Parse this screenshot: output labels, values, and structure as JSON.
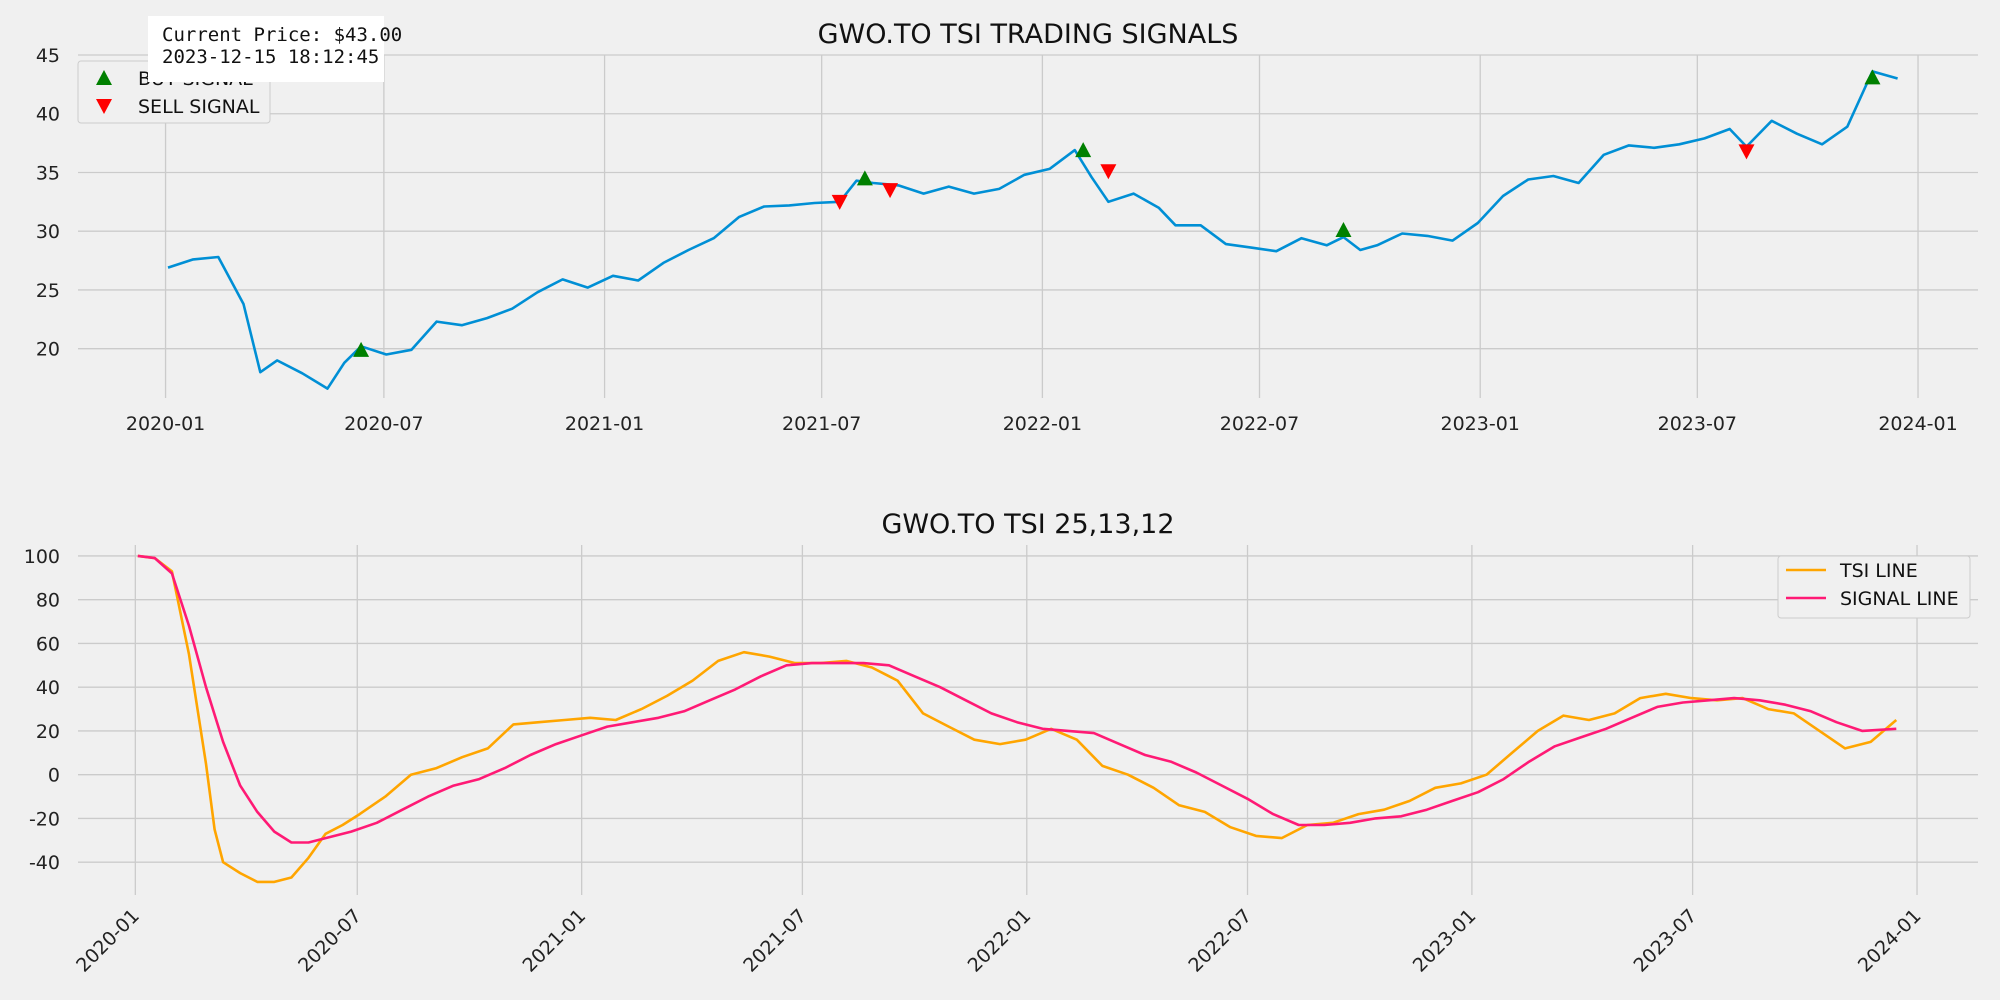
{
  "colors": {
    "background": "#f0f0f0",
    "grid": "#cbcbcb",
    "price_line": "#008fd5",
    "buy": "#008000",
    "sell": "#ff0000",
    "tsi_line": "#ffa500",
    "signal_line": "#ff1a75"
  },
  "info": {
    "price": "Current Price: $43.00",
    "timestamp": "2023-12-15 18:12:45"
  },
  "chart_data": [
    {
      "type": "line",
      "title": "GWO.TO TSI TRADING SIGNALS",
      "xlabel": "",
      "ylabel": "",
      "x_ticks": [
        "2020-01",
        "2020-07",
        "2021-01",
        "2021-07",
        "2022-01",
        "2022-07",
        "2023-01",
        "2023-07",
        "2024-01"
      ],
      "y_ticks": [
        20,
        25,
        30,
        35,
        40,
        45
      ],
      "xlim": [
        "2019-10-20",
        "2024-02-20"
      ],
      "ylim": [
        15.8,
        45.0
      ],
      "grid": true,
      "legend": "top-left",
      "series": [
        {
          "name": "",
          "x": [
            "2020-01-03",
            "2020-01-24",
            "2020-02-14",
            "2020-03-06",
            "2020-03-20",
            "2020-04-03",
            "2020-04-24",
            "2020-05-15",
            "2020-05-29",
            "2020-06-12",
            "2020-07-03",
            "2020-07-24",
            "2020-08-14",
            "2020-09-04",
            "2020-09-25",
            "2020-10-16",
            "2020-11-06",
            "2020-11-27",
            "2020-12-18",
            "2021-01-08",
            "2021-01-29",
            "2021-02-19",
            "2021-03-12",
            "2021-04-02",
            "2021-04-23",
            "2021-05-14",
            "2021-06-04",
            "2021-06-25",
            "2021-07-16",
            "2021-07-30",
            "2021-08-13",
            "2021-09-03",
            "2021-09-24",
            "2021-10-15",
            "2021-11-05",
            "2021-11-26",
            "2021-12-17",
            "2022-01-07",
            "2022-01-28",
            "2022-02-11",
            "2022-02-25",
            "2022-03-18",
            "2022-04-08",
            "2022-04-22",
            "2022-05-13",
            "2022-06-03",
            "2022-06-24",
            "2022-07-15",
            "2022-08-05",
            "2022-08-26",
            "2022-09-09",
            "2022-09-23",
            "2022-10-07",
            "2022-10-28",
            "2022-11-18",
            "2022-12-09",
            "2022-12-30",
            "2023-01-20",
            "2023-02-10",
            "2023-03-03",
            "2023-03-24",
            "2023-04-14",
            "2023-05-05",
            "2023-05-26",
            "2023-06-16",
            "2023-07-07",
            "2023-07-28",
            "2023-08-11",
            "2023-09-01",
            "2023-09-22",
            "2023-10-13",
            "2023-11-03",
            "2023-11-24",
            "2023-12-15"
          ],
          "values": [
            26.9,
            27.6,
            27.8,
            23.8,
            18.0,
            19.0,
            17.9,
            16.6,
            18.8,
            20.2,
            19.5,
            19.9,
            22.3,
            22.0,
            22.6,
            23.4,
            24.8,
            25.9,
            25.2,
            26.2,
            25.8,
            27.3,
            28.4,
            29.4,
            31.2,
            32.1,
            32.2,
            32.4,
            32.5,
            34.3,
            34.1,
            33.9,
            33.2,
            33.8,
            33.2,
            33.6,
            34.8,
            35.3,
            36.9,
            34.6,
            32.5,
            33.2,
            32.0,
            30.5,
            30.5,
            28.9,
            28.6,
            28.3,
            29.4,
            28.8,
            29.5,
            28.4,
            28.8,
            29.8,
            29.6,
            29.2,
            30.7,
            33.0,
            34.4,
            34.7,
            34.1,
            36.5,
            37.3,
            37.1,
            37.4,
            37.9,
            38.7,
            37.2,
            39.4,
            38.3,
            37.4,
            38.9,
            43.6,
            43.0
          ]
        }
      ],
      "markers": [
        {
          "name": "BUY SIGNAL",
          "x": [
            "2020-06-12",
            "2021-08-06",
            "2022-02-04",
            "2022-09-09",
            "2023-11-24"
          ],
          "values": [
            19.9,
            34.5,
            36.9,
            30.1,
            43.1
          ]
        },
        {
          "name": "SELL SIGNAL",
          "x": [
            "2021-07-16",
            "2021-08-27",
            "2022-02-25",
            "2023-08-11"
          ],
          "values": [
            32.5,
            33.5,
            35.1,
            36.8
          ]
        }
      ]
    },
    {
      "type": "line",
      "title": "GWO.TO TSI 25,13,12",
      "xlabel": "",
      "ylabel": "",
      "x_ticks": [
        "2020-01",
        "2020-07",
        "2021-01",
        "2021-07",
        "2022-01",
        "2022-07",
        "2023-01",
        "2023-07",
        "2024-01"
      ],
      "y_ticks": [
        -40,
        -20,
        0,
        20,
        40,
        60,
        80,
        100
      ],
      "xlim": [
        "2019-11-15",
        "2024-02-20"
      ],
      "ylim": [
        -55,
        105
      ],
      "grid": true,
      "legend": "top-right",
      "series": [
        {
          "name": "TSI LINE",
          "x": [
            "2020-01-03",
            "2020-01-17",
            "2020-01-31",
            "2020-02-14",
            "2020-02-28",
            "2020-03-06",
            "2020-03-13",
            "2020-03-27",
            "2020-04-10",
            "2020-04-24",
            "2020-05-08",
            "2020-05-22",
            "2020-06-05",
            "2020-06-19",
            "2020-07-03",
            "2020-07-24",
            "2020-08-14",
            "2020-09-04",
            "2020-09-25",
            "2020-10-16",
            "2020-11-06",
            "2020-11-27",
            "2020-12-18",
            "2021-01-08",
            "2021-01-29",
            "2021-02-19",
            "2021-03-12",
            "2021-04-02",
            "2021-04-23",
            "2021-05-14",
            "2021-06-04",
            "2021-06-25",
            "2021-07-16",
            "2021-08-06",
            "2021-08-27",
            "2021-09-17",
            "2021-10-08",
            "2021-10-29",
            "2021-11-19",
            "2021-12-10",
            "2021-12-31",
            "2022-01-21",
            "2022-02-11",
            "2022-03-04",
            "2022-03-25",
            "2022-04-15",
            "2022-05-06",
            "2022-05-27",
            "2022-06-17",
            "2022-07-08",
            "2022-07-29",
            "2022-08-19",
            "2022-09-09",
            "2022-09-30",
            "2022-10-21",
            "2022-11-11",
            "2022-12-02",
            "2022-12-23",
            "2023-01-13",
            "2023-02-03",
            "2023-02-24",
            "2023-03-17",
            "2023-04-07",
            "2023-04-28",
            "2023-05-19",
            "2023-06-09",
            "2023-06-30",
            "2023-07-21",
            "2023-08-11",
            "2023-09-01",
            "2023-09-22",
            "2023-10-13",
            "2023-11-03",
            "2023-11-24",
            "2023-12-15"
          ],
          "values": [
            100,
            99,
            93,
            55,
            5,
            -25,
            -40,
            -45,
            -49,
            -49,
            -47,
            -38,
            -27,
            -23,
            -18,
            -10,
            0,
            3,
            8,
            12,
            23,
            24,
            25,
            26,
            25,
            30,
            36,
            43,
            52,
            56,
            54,
            51,
            51,
            52,
            49,
            43,
            28,
            22,
            16,
            14,
            16,
            21,
            16,
            4,
            0,
            -6,
            -14,
            -17,
            -24,
            -28,
            -29,
            -23,
            -22,
            -18,
            -16,
            -12,
            -6,
            -4,
            0,
            10,
            20,
            27,
            25,
            28,
            35,
            37,
            35,
            34,
            35,
            30,
            28,
            20,
            12,
            15,
            25
          ]
        },
        {
          "name": "SIGNAL LINE",
          "x": [
            "2020-01-03",
            "2020-01-17",
            "2020-01-31",
            "2020-02-14",
            "2020-02-28",
            "2020-03-13",
            "2020-03-27",
            "2020-04-10",
            "2020-04-24",
            "2020-05-08",
            "2020-05-22",
            "2020-06-05",
            "2020-06-26",
            "2020-07-17",
            "2020-08-07",
            "2020-08-28",
            "2020-09-18",
            "2020-10-09",
            "2020-10-30",
            "2020-11-20",
            "2020-12-11",
            "2021-01-01",
            "2021-01-22",
            "2021-02-12",
            "2021-03-05",
            "2021-03-26",
            "2021-04-16",
            "2021-05-07",
            "2021-05-28",
            "2021-06-18",
            "2021-07-09",
            "2021-07-30",
            "2021-08-20",
            "2021-09-10",
            "2021-10-01",
            "2021-10-22",
            "2021-11-12",
            "2021-12-03",
            "2021-12-24",
            "2022-01-14",
            "2022-02-04",
            "2022-02-25",
            "2022-03-18",
            "2022-04-08",
            "2022-04-29",
            "2022-05-20",
            "2022-06-10",
            "2022-07-01",
            "2022-07-22",
            "2022-08-12",
            "2022-09-02",
            "2022-09-23",
            "2022-10-14",
            "2022-11-04",
            "2022-11-25",
            "2022-12-16",
            "2023-01-06",
            "2023-01-27",
            "2023-02-17",
            "2023-03-10",
            "2023-03-31",
            "2023-04-21",
            "2023-05-12",
            "2023-06-02",
            "2023-06-23",
            "2023-07-14",
            "2023-08-04",
            "2023-08-25",
            "2023-09-15",
            "2023-10-06",
            "2023-10-27",
            "2023-11-17",
            "2023-12-15"
          ],
          "values": [
            100,
            99,
            92,
            68,
            40,
            15,
            -5,
            -17,
            -26,
            -31,
            -31,
            -29,
            -26,
            -22,
            -16,
            -10,
            -5,
            -2,
            3,
            9,
            14,
            18,
            22,
            24,
            26,
            29,
            34,
            39,
            45,
            50,
            51,
            51,
            51,
            50,
            45,
            40,
            34,
            28,
            24,
            21,
            20,
            19,
            14,
            9,
            6,
            1,
            -5,
            -11,
            -18,
            -23,
            -23,
            -22,
            -20,
            -19,
            -16,
            -12,
            -8,
            -2,
            6,
            13,
            17,
            21,
            26,
            31,
            33,
            34,
            35,
            34,
            32,
            29,
            24,
            20,
            21
          ]
        }
      ]
    }
  ]
}
